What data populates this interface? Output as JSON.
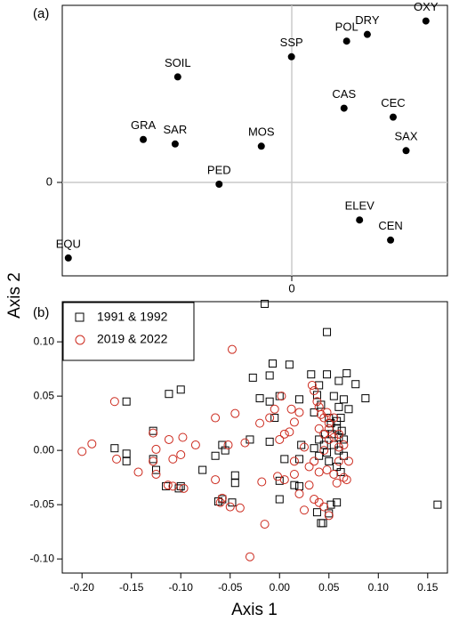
{
  "chart_data": [
    {
      "type": "scatter",
      "panel_label": "(a)",
      "ylabel": "Axis 2",
      "x_ticks": [
        "0"
      ],
      "y_ticks": [
        "0"
      ],
      "point_labels_shown": true,
      "points": [
        {
          "name": "OXY",
          "x": 0.16,
          "y": 0.072
        },
        {
          "name": "POL",
          "x": 0.068,
          "y": 0.063
        },
        {
          "name": "DRY",
          "x": 0.092,
          "y": 0.066
        },
        {
          "name": "SSP",
          "x": 0.004,
          "y": 0.056
        },
        {
          "name": "SOIL",
          "x": -0.128,
          "y": 0.047
        },
        {
          "name": "CAS",
          "x": 0.065,
          "y": 0.033
        },
        {
          "name": "CEC",
          "x": 0.122,
          "y": 0.029
        },
        {
          "name": "GRA",
          "x": -0.168,
          "y": 0.019
        },
        {
          "name": "SAR",
          "x": -0.131,
          "y": 0.017
        },
        {
          "name": "MOS",
          "x": -0.031,
          "y": 0.016
        },
        {
          "name": "SAX",
          "x": 0.137,
          "y": 0.014
        },
        {
          "name": "PED",
          "x": -0.08,
          "y": -0.001
        },
        {
          "name": "ELEV",
          "x": 0.083,
          "y": -0.017
        },
        {
          "name": "CEN",
          "x": 0.119,
          "y": -0.026
        },
        {
          "name": "EQU",
          "x": -0.255,
          "y": -0.034
        }
      ],
      "xlim": [
        -0.262,
        0.185
      ],
      "ylim": [
        -0.042,
        0.079
      ]
    },
    {
      "type": "scatter",
      "panel_label": "(b)",
      "xlabel": "Axis 1",
      "ylabel": "Axis 2",
      "x_ticks": [
        "-0.20",
        "-0.15",
        "-0.10",
        "-0.05",
        "0.00",
        "0.05",
        "0.10",
        "0.15"
      ],
      "y_ticks": [
        "0.10",
        "0.05",
        "0.00",
        "-0.05",
        "-0.10"
      ],
      "xlim": [
        -0.22,
        0.17
      ],
      "ylim": [
        -0.113,
        0.137
      ],
      "legend_position": "top-left",
      "series": [
        {
          "name": "1991 & 1992",
          "marker": "square",
          "color": "#000000",
          "points": [
            [
              -0.015,
              0.135
            ],
            [
              0.048,
              0.109
            ],
            [
              0.06,
              0.064
            ],
            [
              0.077,
              0.061
            ],
            [
              0.087,
              0.048
            ],
            [
              -0.112,
              0.052
            ],
            [
              -0.1,
              0.056
            ],
            [
              -0.155,
              0.045
            ],
            [
              -0.007,
              0.08
            ],
            [
              0.01,
              0.079
            ],
            [
              -0.027,
              0.067
            ],
            [
              -0.01,
              0.069
            ],
            [
              0.032,
              0.07
            ],
            [
              0.048,
              0.07
            ],
            [
              0.068,
              0.071
            ],
            [
              0.04,
              0.06
            ],
            [
              -0.02,
              0.048
            ],
            [
              -0.01,
              0.045
            ],
            [
              0.0,
              0.05
            ],
            [
              0.02,
              0.047
            ],
            [
              0.038,
              0.051
            ],
            [
              0.055,
              0.05
            ],
            [
              0.065,
              0.047
            ],
            [
              0.042,
              0.042
            ],
            [
              0.06,
              0.04
            ],
            [
              0.07,
              0.038
            ],
            [
              -0.005,
              0.03
            ],
            [
              0.035,
              0.035
            ],
            [
              0.05,
              0.03
            ],
            [
              0.062,
              0.03
            ],
            [
              0.052,
              0.025
            ],
            [
              0.058,
              0.02
            ],
            [
              0.063,
              0.018
            ],
            [
              0.053,
              0.015
            ],
            [
              0.06,
              0.012
            ],
            [
              0.065,
              0.01
            ],
            [
              0.045,
              0.005
            ],
            [
              0.055,
              0.005
            ],
            [
              0.06,
              0.0
            ],
            [
              0.065,
              -0.005
            ],
            [
              0.05,
              -0.01
            ],
            [
              0.058,
              -0.015
            ],
            [
              0.062,
              -0.02
            ],
            [
              0.04,
              -0.005
            ],
            [
              0.035,
              0.002
            ],
            [
              0.022,
              0.005
            ],
            [
              0.02,
              -0.008
            ],
            [
              0.005,
              -0.008
            ],
            [
              -0.01,
              0.008
            ],
            [
              -0.03,
              0.01
            ],
            [
              -0.055,
              0.0
            ],
            [
              -0.065,
              -0.005
            ],
            [
              -0.058,
              0.005
            ],
            [
              -0.078,
              -0.018
            ],
            [
              -0.128,
              0.018
            ],
            [
              -0.155,
              -0.003
            ],
            [
              -0.155,
              -0.01
            ],
            [
              -0.167,
              0.002
            ],
            [
              -0.128,
              -0.008
            ],
            [
              -0.125,
              -0.018
            ],
            [
              -0.115,
              -0.033
            ],
            [
              -0.1,
              -0.033
            ],
            [
              -0.102,
              -0.035
            ],
            [
              -0.045,
              -0.023
            ],
            [
              -0.045,
              -0.03
            ],
            [
              -0.058,
              -0.045
            ],
            [
              -0.062,
              -0.047
            ],
            [
              -0.048,
              -0.048
            ],
            [
              0.0,
              -0.028
            ],
            [
              0.015,
              -0.032
            ],
            [
              0.02,
              -0.033
            ],
            [
              0.0,
              -0.045
            ],
            [
              0.038,
              -0.057
            ],
            [
              0.042,
              -0.067
            ],
            [
              0.044,
              -0.067
            ],
            [
              0.05,
              -0.058
            ],
            [
              0.052,
              -0.05
            ],
            [
              0.058,
              -0.048
            ],
            [
              0.16,
              -0.05
            ],
            [
              0.04,
              0.01
            ],
            [
              0.046,
              0.015
            ],
            [
              0.048,
              -0.002
            ],
            [
              0.058,
              0.027
            ]
          ]
        },
        {
          "name": "2019 & 2022",
          "marker": "circle",
          "color": "#cc2a1e",
          "points": [
            [
              -0.048,
              0.093
            ],
            [
              -0.167,
              0.045
            ],
            [
              -0.065,
              0.03
            ],
            [
              -0.045,
              0.034
            ],
            [
              -0.2,
              -0.001
            ],
            [
              -0.19,
              0.006
            ],
            [
              -0.165,
              -0.008
            ],
            [
              -0.143,
              -0.02
            ],
            [
              -0.128,
              0.016
            ],
            [
              -0.128,
              -0.01
            ],
            [
              -0.125,
              -0.022
            ],
            [
              -0.112,
              0.01
            ],
            [
              -0.108,
              -0.008
            ],
            [
              -0.108,
              -0.033
            ],
            [
              -0.1,
              -0.004
            ],
            [
              -0.098,
              0.012
            ],
            [
              -0.097,
              -0.035
            ],
            [
              -0.085,
              0.005
            ],
            [
              -0.125,
              0.001
            ],
            [
              -0.113,
              -0.032
            ],
            [
              -0.065,
              -0.027
            ],
            [
              -0.06,
              -0.048
            ],
            [
              -0.058,
              -0.044
            ],
            [
              -0.05,
              -0.052
            ],
            [
              -0.052,
              0.005
            ],
            [
              -0.035,
              0.007
            ],
            [
              -0.04,
              -0.053
            ],
            [
              -0.018,
              -0.029
            ],
            [
              -0.015,
              -0.068
            ],
            [
              -0.03,
              -0.098
            ],
            [
              -0.02,
              0.025
            ],
            [
              0.0,
              0.01
            ],
            [
              0.005,
              0.015
            ],
            [
              0.01,
              0.017
            ],
            [
              0.015,
              0.026
            ],
            [
              -0.01,
              0.03
            ],
            [
              -0.005,
              0.038
            ],
            [
              0.002,
              0.05
            ],
            [
              0.012,
              0.038
            ],
            [
              0.02,
              0.035
            ],
            [
              0.033,
              0.06
            ],
            [
              0.035,
              0.055
            ],
            [
              0.038,
              0.045
            ],
            [
              0.04,
              0.04
            ],
            [
              0.042,
              0.033
            ],
            [
              0.045,
              0.03
            ],
            [
              0.048,
              0.035
            ],
            [
              0.05,
              0.025
            ],
            [
              0.055,
              0.03
            ],
            [
              0.04,
              0.02
            ],
            [
              0.045,
              0.015
            ],
            [
              0.05,
              0.01
            ],
            [
              0.055,
              0.012
            ],
            [
              0.06,
              0.003
            ],
            [
              0.045,
              0.0
            ],
            [
              0.035,
              -0.01
            ],
            [
              0.03,
              -0.015
            ],
            [
              0.04,
              -0.02
            ],
            [
              0.048,
              -0.018
            ],
            [
              0.055,
              -0.022
            ],
            [
              0.058,
              -0.03
            ],
            [
              0.065,
              -0.025
            ],
            [
              0.068,
              -0.027
            ],
            [
              0.06,
              -0.01
            ],
            [
              0.03,
              -0.032
            ],
            [
              0.035,
              -0.045
            ],
            [
              0.025,
              -0.055
            ],
            [
              0.04,
              -0.048
            ],
            [
              0.045,
              -0.052
            ],
            [
              0.05,
              -0.06
            ],
            [
              0.02,
              -0.04
            ],
            [
              0.015,
              -0.022
            ],
            [
              0.005,
              -0.027
            ],
            [
              -0.002,
              -0.024
            ],
            [
              0.025,
              0.003
            ],
            [
              0.015,
              -0.01
            ],
            [
              0.05,
              0.02
            ],
            [
              0.06,
              0.015
            ],
            [
              0.065,
              0.005
            ],
            [
              0.07,
              -0.01
            ]
          ]
        }
      ]
    }
  ]
}
